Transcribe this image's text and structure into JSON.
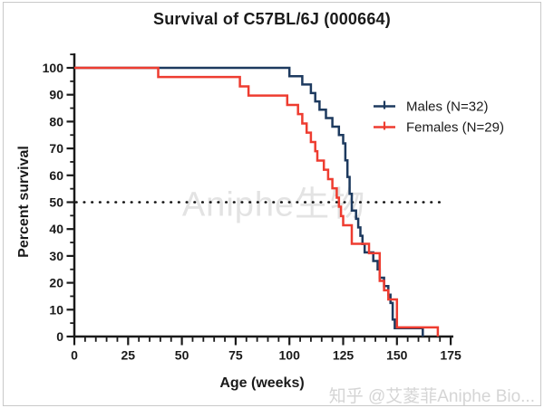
{
  "page": {
    "title": "Survival of C57BL/6J (000664)",
    "watermark_center": "Aniphe生物",
    "watermark_corner": "知乎 @艾菱菲Aniphe Bio...",
    "border_color": "#c9c9c9",
    "background_color": "#ffffff"
  },
  "chart_data": {
    "type": "line",
    "subtype": "kaplan-meier-survival-step",
    "title": "Survival of C57BL/6J (000664)",
    "xlabel": "Age (weeks)",
    "ylabel": "Percent survival",
    "xlim": [
      0,
      175
    ],
    "ylim": [
      0,
      100
    ],
    "x_major_ticks": [
      0,
      25,
      50,
      75,
      100,
      125,
      150,
      175
    ],
    "x_minor_step": 5,
    "y_major_ticks": [
      0,
      10,
      20,
      30,
      40,
      50,
      60,
      70,
      80,
      90,
      100
    ],
    "y_minor_step": 5,
    "grid": false,
    "axis_color": "#1a1a1a",
    "reference_line": {
      "y": 50,
      "style": "dotted",
      "color": "#111111"
    },
    "legend": {
      "position": "upper-right-inside"
    },
    "series": [
      {
        "name": "Males (N=32)",
        "n": 32,
        "color": "#1d3a5f",
        "steps": [
          [
            0,
            100
          ],
          [
            100,
            96.9
          ],
          [
            106,
            93.8
          ],
          [
            110,
            90.6
          ],
          [
            112,
            87.5
          ],
          [
            114,
            84.4
          ],
          [
            117,
            81.3
          ],
          [
            120,
            78.1
          ],
          [
            123,
            75.0
          ],
          [
            125,
            71.9
          ],
          [
            126,
            65.6
          ],
          [
            127,
            59.4
          ],
          [
            128,
            53.1
          ],
          [
            129,
            46.9
          ],
          [
            131,
            43.8
          ],
          [
            132,
            40.6
          ],
          [
            133,
            37.5
          ],
          [
            134,
            34.4
          ],
          [
            135,
            31.3
          ],
          [
            139,
            28.1
          ],
          [
            141,
            25.0
          ],
          [
            142,
            21.9
          ],
          [
            144,
            18.8
          ],
          [
            146,
            15.6
          ],
          [
            147,
            12.5
          ],
          [
            148,
            6.3
          ],
          [
            149,
            3.1
          ],
          [
            162,
            0
          ]
        ]
      },
      {
        "name": "Females (N=29)",
        "n": 29,
        "color": "#ee3c30",
        "steps": [
          [
            0,
            100
          ],
          [
            39,
            96.6
          ],
          [
            77,
            93.1
          ],
          [
            81,
            89.7
          ],
          [
            99,
            86.2
          ],
          [
            104,
            82.8
          ],
          [
            106,
            79.3
          ],
          [
            108,
            75.9
          ],
          [
            110,
            72.4
          ],
          [
            112,
            69.0
          ],
          [
            113,
            65.5
          ],
          [
            116,
            62.1
          ],
          [
            118,
            58.6
          ],
          [
            120,
            55.2
          ],
          [
            122,
            51.7
          ],
          [
            123,
            48.3
          ],
          [
            124,
            44.8
          ],
          [
            125,
            41.4
          ],
          [
            129,
            34.5
          ],
          [
            137,
            31.0
          ],
          [
            142,
            20.7
          ],
          [
            144,
            17.2
          ],
          [
            146,
            13.8
          ],
          [
            150,
            3.4
          ],
          [
            169,
            0
          ]
        ]
      }
    ]
  }
}
